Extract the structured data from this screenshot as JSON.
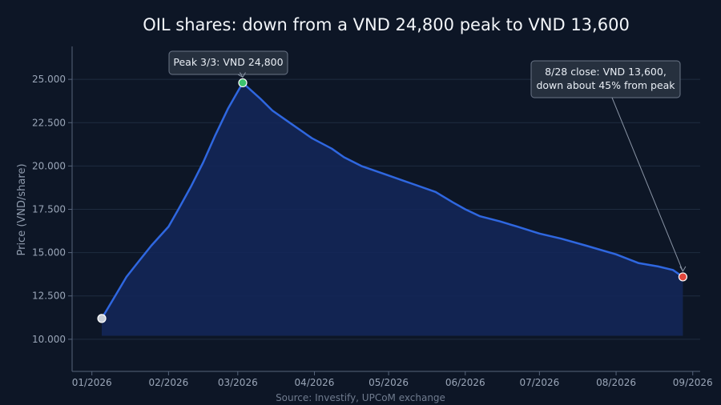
{
  "chart_data": {
    "type": "area",
    "title": "OIL shares: down from a VND 24,800 peak to VND 13,600",
    "ylabel": "Price (VND/share)",
    "xlabel": "",
    "source": "Source: Investify, UPCoM exchange",
    "ylim": [
      8700,
      26900
    ],
    "xlim": [
      "2025-12-24",
      "2026-09-04"
    ],
    "grid": true,
    "colors": {
      "line": "#2f67e0",
      "fill": "#14275a",
      "start": "#c8ced8",
      "peak": "#3cc46e",
      "end": "#e0463c"
    },
    "y_ticks": [
      {
        "value": 10000,
        "label": "10.000"
      },
      {
        "value": 12500,
        "label": "12.500"
      },
      {
        "value": 15000,
        "label": "15.000"
      },
      {
        "value": 17500,
        "label": "17.500"
      },
      {
        "value": 20000,
        "label": "20.000"
      },
      {
        "value": 22500,
        "label": "22.500"
      },
      {
        "value": 25000,
        "label": "25.000"
      }
    ],
    "x_ticks": [
      {
        "date": "2026-01-01",
        "label": "01/2026"
      },
      {
        "date": "2026-02-01",
        "label": "02/2026"
      },
      {
        "date": "2026-03-01",
        "label": "03/2026"
      },
      {
        "date": "2026-04-01",
        "label": "04/2026"
      },
      {
        "date": "2026-05-01",
        "label": "05/2026"
      },
      {
        "date": "2026-06-01",
        "label": "06/2026"
      },
      {
        "date": "2026-07-01",
        "label": "07/2026"
      },
      {
        "date": "2026-08-01",
        "label": "08/2026"
      },
      {
        "date": "2026-09-01",
        "label": "09/2026"
      }
    ],
    "series": [
      {
        "values": [
          {
            "x": "2026-01-05",
            "y": 11200
          },
          {
            "x": "2026-01-10",
            "y": 12400
          },
          {
            "x": "2026-01-15",
            "y": 13600
          },
          {
            "x": "2026-01-20",
            "y": 14500
          },
          {
            "x": "2026-01-25",
            "y": 15400
          },
          {
            "x": "2026-02-01",
            "y": 16500
          },
          {
            "x": "2026-02-05",
            "y": 17500
          },
          {
            "x": "2026-02-10",
            "y": 18800
          },
          {
            "x": "2026-02-15",
            "y": 20200
          },
          {
            "x": "2026-02-20",
            "y": 21800
          },
          {
            "x": "2026-02-25",
            "y": 23300
          },
          {
            "x": "2026-03-03",
            "y": 24800
          },
          {
            "x": "2026-03-10",
            "y": 23900
          },
          {
            "x": "2026-03-15",
            "y": 23200
          },
          {
            "x": "2026-03-22",
            "y": 22500
          },
          {
            "x": "2026-03-31",
            "y": 21600
          },
          {
            "x": "2026-04-08",
            "y": 21000
          },
          {
            "x": "2026-04-13",
            "y": 20500
          },
          {
            "x": "2026-04-20",
            "y": 20000
          },
          {
            "x": "2026-04-30",
            "y": 19500
          },
          {
            "x": "2026-05-10",
            "y": 19000
          },
          {
            "x": "2026-05-20",
            "y": 18500
          },
          {
            "x": "2026-05-27",
            "y": 17900
          },
          {
            "x": "2026-06-01",
            "y": 17500
          },
          {
            "x": "2026-06-07",
            "y": 17100
          },
          {
            "x": "2026-06-15",
            "y": 16800
          },
          {
            "x": "2026-06-22",
            "y": 16500
          },
          {
            "x": "2026-07-01",
            "y": 16100
          },
          {
            "x": "2026-07-10",
            "y": 15800
          },
          {
            "x": "2026-07-20",
            "y": 15400
          },
          {
            "x": "2026-08-01",
            "y": 14900
          },
          {
            "x": "2026-08-10",
            "y": 14400
          },
          {
            "x": "2026-08-18",
            "y": 14200
          },
          {
            "x": "2026-08-24",
            "y": 14000
          },
          {
            "x": "2026-08-28",
            "y": 13600
          }
        ]
      }
    ],
    "markers": [
      {
        "name": "start",
        "x": "2026-01-05",
        "y": 11200
      },
      {
        "name": "peak",
        "x": "2026-03-03",
        "y": 24800
      },
      {
        "name": "end",
        "x": "2026-08-28",
        "y": 13600
      }
    ],
    "annotations": [
      {
        "name": "peak",
        "lines": [
          "Peak 3/3: VND 24,800"
        ]
      },
      {
        "name": "end",
        "lines": [
          "8/28 close: VND 13,600,",
          "down about 45% from peak"
        ]
      }
    ]
  }
}
